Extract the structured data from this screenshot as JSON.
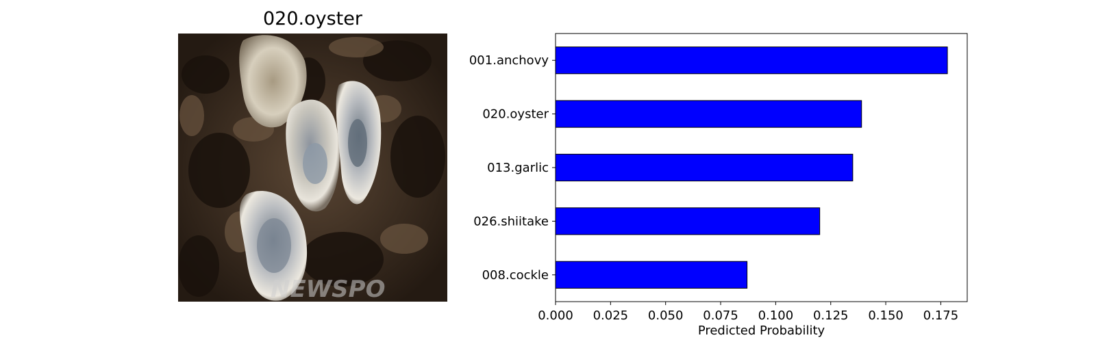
{
  "image_panel": {
    "title": "020.oyster",
    "subject": "oysters on rock",
    "watermark": "NEWSPO"
  },
  "chart_data": {
    "type": "bar",
    "orientation": "horizontal",
    "categories": [
      "001.anchovy",
      "020.oyster",
      "013.garlic",
      "026.shiitake",
      "008.cockle"
    ],
    "values": [
      0.178,
      0.139,
      0.135,
      0.12,
      0.087
    ],
    "xlabel": "Predicted Probability",
    "ylabel": "",
    "xlim": [
      0,
      0.187
    ],
    "xticks": [
      0.0,
      0.025,
      0.05,
      0.075,
      0.1,
      0.125,
      0.15,
      0.175
    ],
    "xtick_labels": [
      "0.000",
      "0.025",
      "0.050",
      "0.075",
      "0.100",
      "0.125",
      "0.150",
      "0.175"
    ],
    "bar_color": "#0000ff",
    "edge_color": "#000000",
    "grid": false,
    "legend": "none"
  }
}
